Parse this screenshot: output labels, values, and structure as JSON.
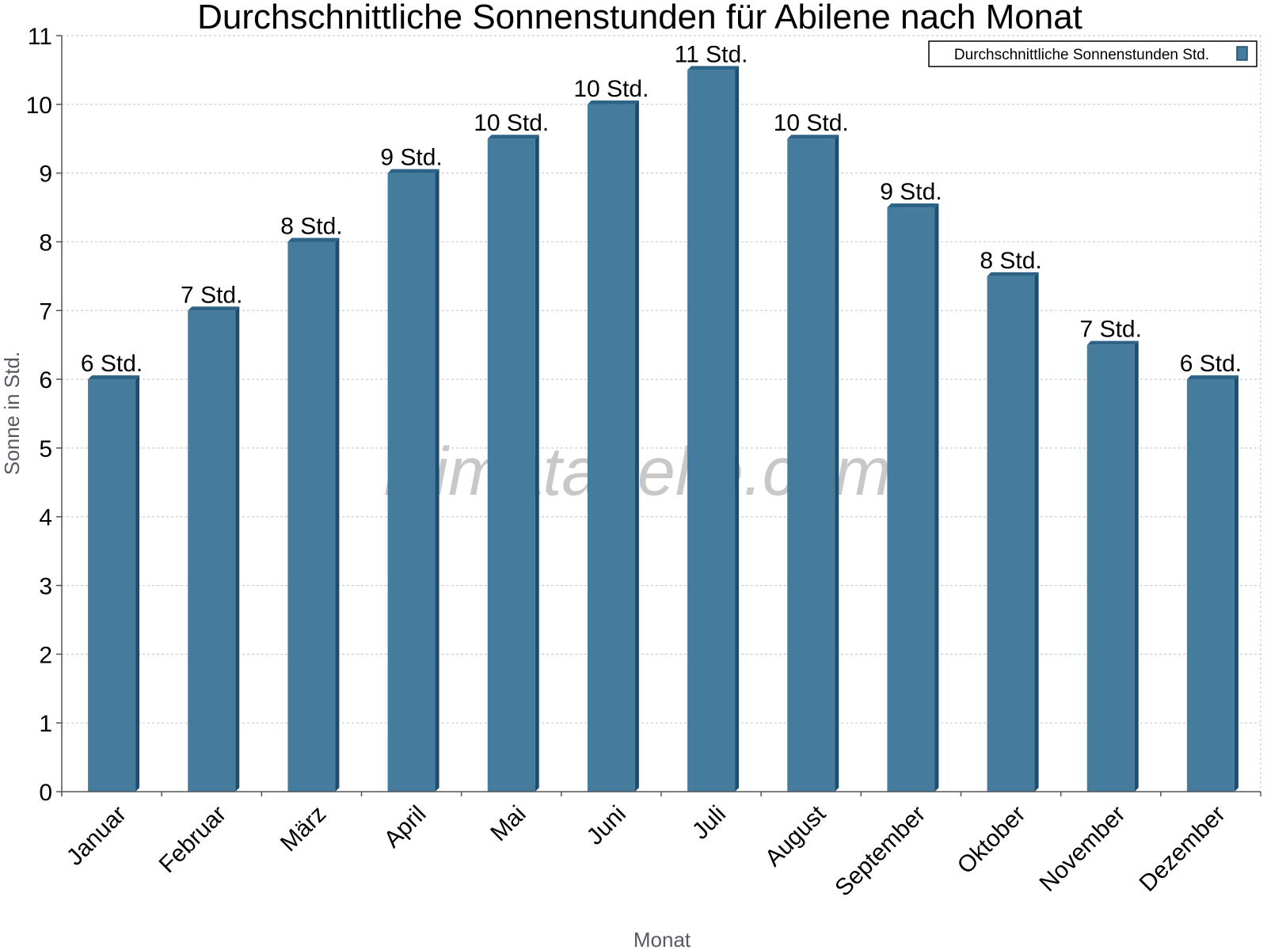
{
  "watermark": "klimatabelle.com",
  "colors": {
    "bar_front": "#457b9d",
    "bar_side": "#1d4e6e",
    "bar_top": "#2e6388",
    "grid": "#cccccc",
    "axis": "#555555"
  },
  "chart_data": {
    "type": "bar",
    "title": "Durchschnittliche Sonnenstunden für Abilene nach Monat",
    "xlabel": "Monat",
    "ylabel": "Sonne in Std.",
    "ylim": [
      0,
      11
    ],
    "yticks": [
      "0",
      "1",
      "2",
      "3",
      "4",
      "5",
      "6",
      "7",
      "8",
      "9",
      "10",
      "11"
    ],
    "grid": true,
    "legend_position": "top-right",
    "categories": [
      "Januar",
      "Februar",
      "März",
      "April",
      "Mai",
      "Juni",
      "Juli",
      "August",
      "September",
      "Oktober",
      "November",
      "Dezember"
    ],
    "series": [
      {
        "name": "Durchschnittliche Sonnenstunden Std.",
        "values": [
          6,
          7,
          8,
          9,
          9.5,
          10,
          10.5,
          9.5,
          8.5,
          7.5,
          6.5,
          6
        ],
        "labels": [
          "6 Std.",
          "7 Std.",
          "8 Std.",
          "9 Std.",
          "10 Std.",
          "10 Std.",
          "11 Std.",
          "10 Std.",
          "9 Std.",
          "8 Std.",
          "7 Std.",
          "6 Std."
        ]
      }
    ]
  }
}
